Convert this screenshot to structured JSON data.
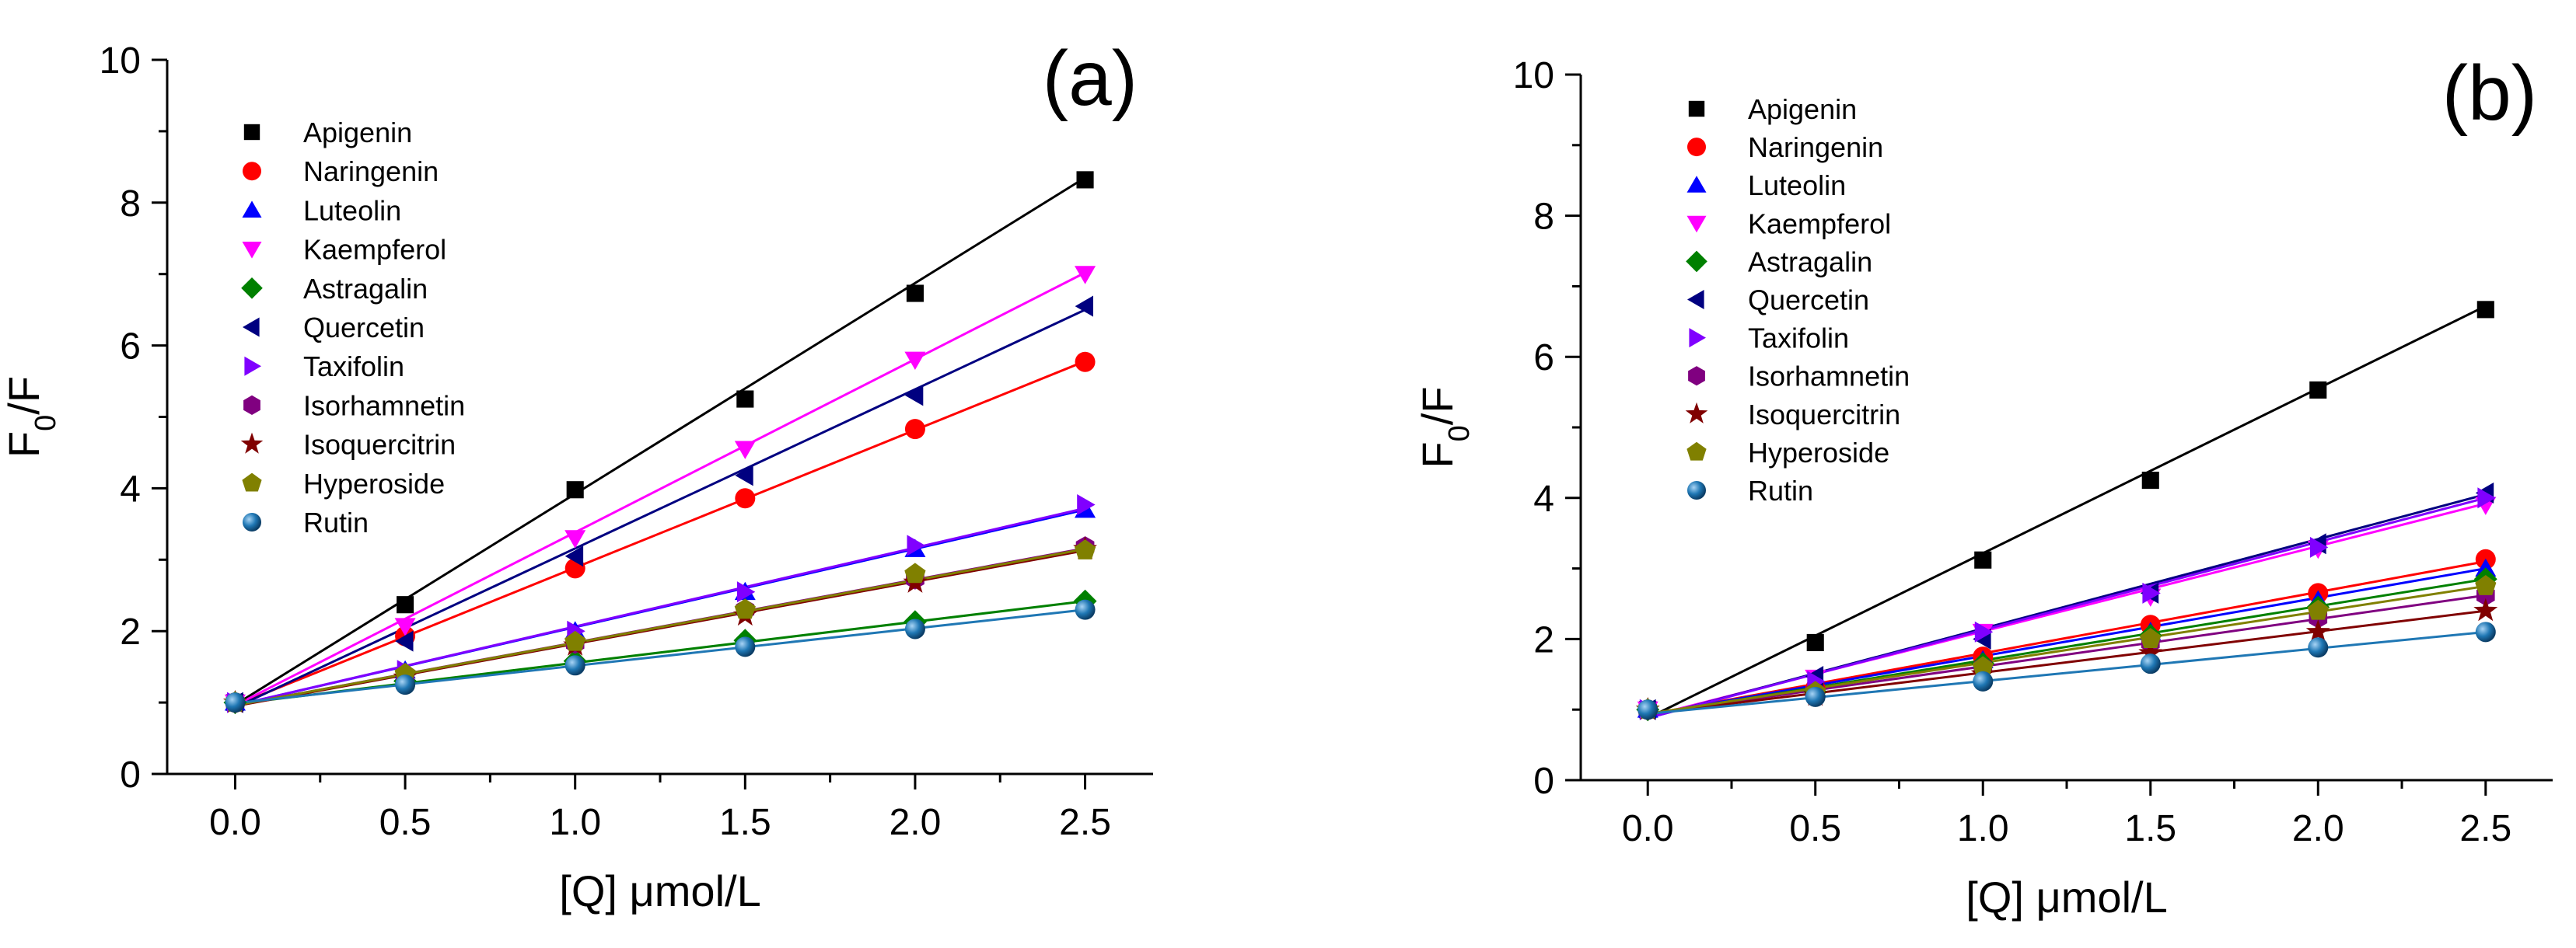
{
  "chart_data": [
    {
      "type": "scatter",
      "panel_label": "(a)",
      "xlabel": "[Q] μmol/L",
      "ylabel_main": "F",
      "ylabel_sub": "0",
      "ylabel_tail": "/F",
      "xlim": [
        -0.2,
        2.7
      ],
      "ylim": [
        0,
        10
      ],
      "xticks": [
        "0.0",
        "0.5",
        "1.0",
        "1.5",
        "2.0",
        "2.5"
      ],
      "yticks": [
        "0",
        "2",
        "4",
        "6",
        "8",
        "10"
      ],
      "legend_position": "top-left",
      "x": [
        0,
        0.5,
        1.0,
        1.5,
        2.0,
        2.5
      ],
      "series": [
        {
          "name": "Apigenin",
          "color": "#000000",
          "marker": "square",
          "values": [
            1.0,
            2.37,
            3.98,
            5.25,
            6.73,
            8.32
          ],
          "fit": [
            0.97,
            8.35
          ]
        },
        {
          "name": "Naringenin",
          "color": "#ff0000",
          "marker": "circle",
          "values": [
            1.0,
            1.93,
            2.88,
            3.86,
            4.83,
            5.77
          ],
          "fit": [
            0.96,
            5.78
          ]
        },
        {
          "name": "Luteolin",
          "color": "#0000ff",
          "marker": "triangle-up",
          "values": [
            1.0,
            1.45,
            2.0,
            2.55,
            3.15,
            3.7
          ],
          "fit": [
            0.96,
            3.7
          ]
        },
        {
          "name": "Kaempferol",
          "color": "#ff00ff",
          "marker": "triangle-down",
          "values": [
            1.0,
            2.07,
            3.3,
            4.55,
            5.8,
            7.0
          ],
          "fit": [
            0.96,
            7.02
          ]
        },
        {
          "name": "Astragalin",
          "color": "#008000",
          "marker": "diamond",
          "values": [
            1.0,
            1.3,
            1.58,
            1.87,
            2.13,
            2.42
          ],
          "fit": [
            0.98,
            2.42
          ]
        },
        {
          "name": "Quercetin",
          "color": "#000080",
          "marker": "triangle-left",
          "values": [
            1.0,
            1.86,
            3.05,
            4.18,
            5.3,
            6.55
          ],
          "fit": [
            0.93,
            6.5
          ]
        },
        {
          "name": "Taxifolin",
          "color": "#8000ff",
          "marker": "triangle-right",
          "values": [
            1.0,
            1.45,
            2.0,
            2.55,
            3.2,
            3.77
          ],
          "fit": [
            0.96,
            3.72
          ]
        },
        {
          "name": "Isorhamnetin",
          "color": "#800080",
          "marker": "hexagon",
          "values": [
            1.0,
            1.38,
            1.83,
            2.3,
            2.73,
            3.18
          ],
          "fit": [
            0.96,
            3.16
          ]
        },
        {
          "name": "Isoquercitrin",
          "color": "#800000",
          "marker": "star",
          "values": [
            1.0,
            1.35,
            1.8,
            2.22,
            2.68,
            3.15
          ],
          "fit": [
            0.95,
            3.13
          ]
        },
        {
          "name": "Hyperoside",
          "color": "#808000",
          "marker": "pentagon",
          "values": [
            1.0,
            1.4,
            1.85,
            2.3,
            2.8,
            3.13
          ],
          "fit": [
            0.96,
            3.15
          ]
        },
        {
          "name": "Rutin",
          "color": "#1f77b4",
          "marker": "sphere",
          "values": [
            1.0,
            1.25,
            1.52,
            1.78,
            2.03,
            2.3
          ],
          "fit": [
            0.99,
            2.3
          ]
        }
      ]
    },
    {
      "type": "scatter",
      "panel_label": "(b)",
      "xlabel": "[Q] μmol/L",
      "ylabel_main": "F",
      "ylabel_sub": "0",
      "ylabel_tail": "/F",
      "xlim": [
        -0.2,
        2.7
      ],
      "ylim": [
        0,
        10
      ],
      "xticks": [
        "0.0",
        "0.5",
        "1.0",
        "1.5",
        "2.0",
        "2.5"
      ],
      "yticks": [
        "0",
        "2",
        "4",
        "6",
        "8",
        "10"
      ],
      "legend_position": "top-left",
      "x": [
        0,
        0.5,
        1.0,
        1.5,
        2.0,
        2.5
      ],
      "series": [
        {
          "name": "Apigenin",
          "color": "#000000",
          "marker": "square",
          "values": [
            1.0,
            1.95,
            3.12,
            4.25,
            5.53,
            6.67
          ],
          "fit": [
            0.88,
            6.72
          ]
        },
        {
          "name": "Naringenin",
          "color": "#ff0000",
          "marker": "circle",
          "values": [
            1.0,
            1.3,
            1.75,
            2.2,
            2.65,
            3.13
          ],
          "fit": [
            0.93,
            3.1
          ]
        },
        {
          "name": "Luteolin",
          "color": "#0000ff",
          "marker": "triangle-up",
          "values": [
            1.0,
            1.3,
            1.7,
            2.1,
            2.55,
            3.0
          ],
          "fit": [
            0.93,
            3.0
          ]
        },
        {
          "name": "Kaempferol",
          "color": "#ff00ff",
          "marker": "triangle-down",
          "values": [
            1.0,
            1.45,
            2.1,
            2.6,
            3.28,
            3.9
          ],
          "fit": [
            0.9,
            3.92
          ]
        },
        {
          "name": "Astragalin",
          "color": "#008000",
          "marker": "diamond",
          "values": [
            1.0,
            1.25,
            1.65,
            2.05,
            2.45,
            2.85
          ],
          "fit": [
            0.93,
            2.85
          ]
        },
        {
          "name": "Quercetin",
          "color": "#000080",
          "marker": "triangle-left",
          "values": [
            1.0,
            1.47,
            2.0,
            2.65,
            3.35,
            4.07
          ],
          "fit": [
            0.88,
            4.05
          ]
        },
        {
          "name": "Taxifolin",
          "color": "#8000ff",
          "marker": "triangle-right",
          "values": [
            1.0,
            1.4,
            2.1,
            2.65,
            3.3,
            4.0
          ],
          "fit": [
            0.88,
            4.0
          ]
        },
        {
          "name": "Isorhamnetin",
          "color": "#800080",
          "marker": "hexagon",
          "values": [
            1.0,
            1.25,
            1.6,
            1.95,
            2.3,
            2.62
          ],
          "fit": [
            0.94,
            2.62
          ]
        },
        {
          "name": "Isoquercitrin",
          "color": "#800000",
          "marker": "star",
          "values": [
            1.0,
            1.2,
            1.5,
            1.8,
            2.1,
            2.4
          ],
          "fit": [
            0.94,
            2.4
          ]
        },
        {
          "name": "Hyperoside",
          "color": "#808000",
          "marker": "pentagon",
          "values": [
            1.0,
            1.25,
            1.6,
            2.0,
            2.4,
            2.75
          ],
          "fit": [
            0.94,
            2.75
          ]
        },
        {
          "name": "Rutin",
          "color": "#1f77b4",
          "marker": "sphere",
          "values": [
            1.0,
            1.18,
            1.4,
            1.65,
            1.88,
            2.1
          ],
          "fit": [
            0.94,
            2.1
          ]
        }
      ]
    }
  ]
}
